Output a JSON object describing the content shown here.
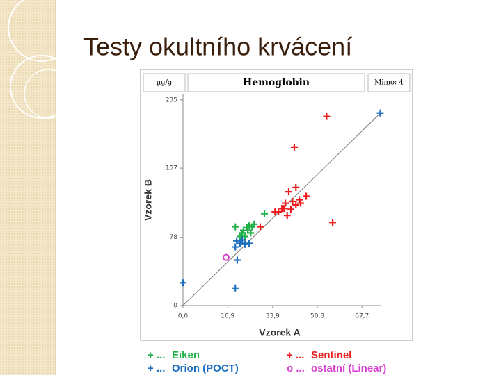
{
  "title": "Testy okultního krvácení",
  "chart_data": {
    "type": "scatter",
    "title": "Hemoglobin",
    "unit": "µg/g",
    "note": "Mimo: 4",
    "xlabel": "Vzorek A",
    "ylabel": "Vzorek B",
    "xlim": [
      0,
      75
    ],
    "ylim": [
      0,
      242
    ],
    "xticks": [
      {
        "value": 0,
        "label": "0,0"
      },
      {
        "value": 16.9,
        "label": "16,9"
      },
      {
        "value": 33.9,
        "label": "33,9"
      },
      {
        "value": 50.8,
        "label": "50,8"
      },
      {
        "value": 67.7,
        "label": "67,7"
      }
    ],
    "yticks": [
      0,
      78,
      157,
      235
    ],
    "reference_line": {
      "x": [
        0,
        75
      ],
      "y": [
        0,
        221
      ]
    },
    "series": [
      {
        "name": "Eiken",
        "legend_prefix": "+ ...",
        "marker": "+",
        "color": "#22b04b",
        "x": [
          19.8,
          30.8,
          22.9,
          24.2,
          25,
          26.1,
          26.9,
          23.4,
          22.4,
          25.6,
          24.5,
          21.6
        ],
        "values": [
          90,
          105,
          86,
          89,
          91,
          90,
          93,
          79,
          83,
          83,
          86,
          79
        ]
      },
      {
        "name": "Sentinel",
        "legend_prefix": "+ ...",
        "marker": "+",
        "color": "#ee1c1c",
        "x": [
          54.3,
          42.1,
          56.6,
          29.2,
          34.8,
          37.4,
          38.7,
          40,
          42.7,
          46.6,
          44,
          41.4,
          39.4,
          36.1,
          42.7,
          44.5,
          38.2,
          40.8
        ],
        "values": [
          216,
          181,
          95,
          90,
          107,
          111,
          117,
          130,
          135,
          125,
          121,
          119,
          103,
          107,
          115,
          117,
          111,
          110
        ]
      },
      {
        "name": "Orion (POCT)",
        "legend_prefix": "+ ...",
        "marker": "+",
        "color": "#1f6fbf",
        "x": [
          74.6,
          0,
          19.8,
          20.5,
          19.8,
          21.6,
          23.4,
          25,
          20.3,
          22.4
        ],
        "values": [
          220,
          26,
          20,
          52,
          67,
          71,
          70,
          71,
          74,
          75
        ]
      },
      {
        "name": "ostatní (Linear)",
        "legend_prefix": "o ...",
        "marker": "o",
        "color": "#d63fd0",
        "x": [
          16.3
        ],
        "values": [
          55
        ]
      }
    ]
  }
}
